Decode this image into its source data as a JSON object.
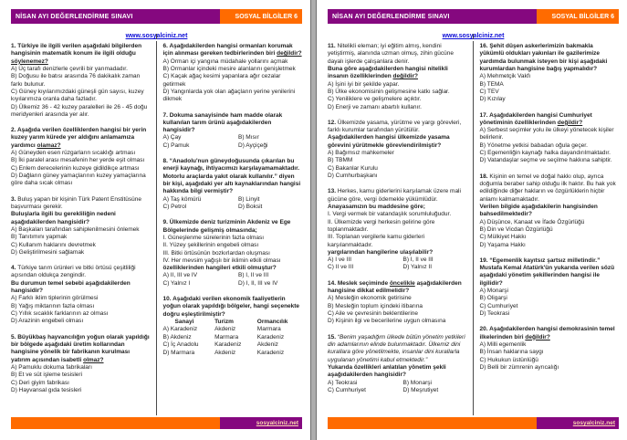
{
  "header": {
    "title": "NİSAN AYI DEĞERLENDİRME SINAVI",
    "subject": "SOSYAL BİLGİLER 6"
  },
  "top_link": "www.sosyalciniz.net",
  "footer": {
    "site": "sosyalciniz.net"
  },
  "colors": {
    "header_purple": "#85087f",
    "accent_orange": "#ff6b00",
    "link_blue": "#0b0bd6",
    "gutter_gray": "#adadad"
  },
  "pages": [
    {
      "columns": [
        [
          {
            "stem": [
              [
                {
                  "t": "1. Türkiye ile ilgili verilen aşağıdaki bilgilerden hangisinin matematik konum ile ilgili olduğu ",
                  "f": "b"
                },
                {
                  "t": "söylenemez?",
                  "f": "bu"
                }
              ]
            ],
            "options": {
              "layout": "list",
              "items": [
                "A) Üç tarafı denizlerle çevrili bir yarımadadır.",
                "B) Doğusu ile batısı arasında 76 dakikalık zaman farkı bulunur.",
                "C) Güney kıyılarımızdaki güneşli gün sayısı, kuzey kıyılarımıza oranla daha fazladır.",
                "D) Ülkemiz 36 - 42 kuzey paralelleri ile 26 - 45 doğu meridyenleri arasında yer alır."
              ]
            }
          },
          {
            "stem": [
              [
                {
                  "t": "2. Aşağıda verilen özelliklerden hangisi bir yerin kuzey yarım kürede yer aldığını anlamamıza yardımcı ",
                  "f": "b"
                },
                {
                  "t": "olamaz?",
                  "f": "bu"
                }
              ]
            ],
            "options": {
              "layout": "list",
              "items": [
                "A) Güneyden esen rüzgarların sıcaklığı artması",
                "B) İki paralel arası mesafenin her yerde eşit olması",
                "C) Enlem derecelerinin kuzeye gidildikçe artması",
                "D) Dağların güney yamaçlarının kuzey yamaçlarına göre daha sıcak olması"
              ]
            }
          },
          {
            "stem": [
              [
                {
                  "t": "3. ",
                  "f": "b"
                },
                {
                  "t": "Buluş yapan bir kişinin Türk Patent Enstitüsüne başvurması gerekir.",
                  "f": "r"
                }
              ],
              [
                {
                  "t": "Buluşlarla ilgili bu gerekliliğin nedeni aşağıdakilerden hangisidir?",
                  "f": "b"
                }
              ]
            ],
            "options": {
              "layout": "list",
              "items": [
                "A) Başkaları tarafından sahiplenilmesini önlemek",
                "B) Tanıtımını yapmak",
                "C) Kullanım haklarını devretmek",
                "D) Geliştirilmesini sağlamak"
              ]
            }
          },
          {
            "stem": [
              [
                {
                  "t": "4. ",
                  "f": "b"
                },
                {
                  "t": "Türkiye tarım ürünleri ve bitki örtüsü çeşitliliği açısından oldukça zengindir.",
                  "f": "r"
                }
              ],
              [
                {
                  "t": "Bu durumun temel sebebi aşağıdakilerden hangisidir?",
                  "f": "b"
                }
              ]
            ],
            "options": {
              "layout": "list",
              "items": [
                "A) Farklı iklim tiplerinin görülmesi",
                "B) Yağış miktarının fazla olması",
                "C) Yıllık sıcaklık farklarının az olması",
                "D) Arazinin engebeli olması"
              ]
            }
          },
          {
            "stem": [
              [
                {
                  "t": "5. Büyükbaş hayvancılığın yoğun olarak yapıldığı bir bölgede aşağıdaki üretim kollarından hangisine yönelik bir fabrikanın kurulması yatırım açısından isabetli ",
                  "f": "b"
                },
                {
                  "t": "olmaz?",
                  "f": "bu"
                }
              ]
            ],
            "options": {
              "layout": "list",
              "items": [
                "A) Pamuklu dokuma fabrikaları",
                "B) Et ve süt işleme tesisleri",
                "C) Deri giyim fabrikası",
                "D) Hayvansal gıda tesisleri"
              ]
            }
          }
        ],
        [
          {
            "stem": [
              [
                {
                  "t": "6. Aşağıdakilerden hangisi ormanları korumak için alınması gereken tedbirlerinden biri ",
                  "f": "b"
                },
                {
                  "t": "değildir?",
                  "f": "bu"
                }
              ]
            ],
            "options": {
              "layout": "list",
              "items": [
                "A) Orman içi yangına müdahale yollarını açmak",
                "B) Ormanlar içindeki mesire alanlarını genişletmek",
                "C) Kaçak ağaç kesimi yapanlara ağır cezalar getirmek",
                "D) Yangınlarda yok olan ağaçların yerine yenilerini dikmek"
              ]
            }
          },
          {
            "stem": [
              [
                {
                  "t": "7. Dokuma sanayisinde ham madde olarak kullanılan tarım ürünü aşağıdakilerden hangisidir?",
                  "f": "b"
                }
              ]
            ],
            "options": {
              "layout": "grid",
              "items": [
                "A) Çay",
                "B) Mısır",
                "C) Pamuk",
                "D) Ayçiçeği"
              ]
            }
          },
          {
            "stem": [
              [
                {
                  "t": "8. “Anadolu'nun güneydoğusunda çıkarılan bu enerji kaynağı, ihtiyacımızı karşılayamamaktadır. Motorlu araçlarda yakıt olarak kullanılır.” diyen bir kişi, aşağıdaki yer altı kaynaklarından hangisi hakkında bilgi vermiştir?",
                  "f": "b"
                }
              ]
            ],
            "options": {
              "layout": "grid",
              "items": [
                "A) Taş kömürü",
                "B) Linyit",
                "C) Petrol",
                "D) Boksit"
              ]
            }
          },
          {
            "stem": [
              [
                {
                  "t": "9. Ülkemizde deniz turizminin Akdeniz ve Ege Bölgelerinde gelişmiş olmasında;",
                  "f": "b"
                }
              ],
              [
                {
                  "t": "I. Güneşlenme sürelerinin fazla olması",
                  "f": "r"
                }
              ],
              [
                {
                  "t": "II. Yüzey şekillerinin engebeli olması",
                  "f": "r"
                }
              ],
              [
                {
                  "t": "III. Bitki örtüsünün bozkırlardan oluşması",
                  "f": "r"
                }
              ],
              [
                {
                  "t": "IV. Her mevsim yağışlı bir iklimin etkili olması",
                  "f": "r"
                }
              ],
              [
                {
                  "t": "özelliklerinden hangileri etkili olmuştur?",
                  "f": "b"
                }
              ]
            ],
            "options": {
              "layout": "grid",
              "items": [
                "A) II, III ve IV",
                "B) I, II ve III",
                "C) Yalnız I",
                "D) I, II, III ve IV"
              ]
            }
          },
          {
            "stem": [
              [
                {
                  "t": "10. Aşağıdaki verilen ekonomik faaliyetlerin yoğun olarak yapıldığı bölgeler, hangi seçenekte doğru eşleştirilmiştir?",
                  "f": "b"
                }
              ]
            ],
            "table": {
              "headers": [
                "Sanayi",
                "Turizm",
                "Ormancılık"
              ],
              "rows": [
                [
                  "A) Karadeniz",
                  "Akdeniz",
                  "Marmara"
                ],
                [
                  "B) Akdeniz",
                  "Marmara",
                  "Karadeniz"
                ],
                [
                  "C) İç Anadolu",
                  "Karadeniz",
                  "Akdeniz"
                ],
                [
                  "D) Marmara",
                  "Akdeniz",
                  "Karadeniz"
                ]
              ]
            }
          }
        ]
      ]
    },
    {
      "columns": [
        [
          {
            "stem": [
              [
                {
                  "t": "11. ",
                  "f": "b"
                },
                {
                  "t": "Nitelikli eleman; iyi eğitim almış, kendini yetiştirmiş, alanında uzman olmuş, zihin gücüne dayalı işlerde çalışanlara denir.",
                  "f": "r"
                }
              ],
              [
                {
                  "t": "Buna göre aşağıdakilerden hangisi nitelikli insanın özelliklerinden ",
                  "f": "b"
                },
                {
                  "t": "değildir?",
                  "f": "bu"
                }
              ]
            ],
            "options": {
              "layout": "list",
              "items": [
                "A) İşini iyi bir şekilde yapar.",
                "B) Ülke ekonomisinin gelişmesine katkı sağlar.",
                "C) Yeniliklere ve gelişmelere açıktır.",
                "D) Enerji ve zamanı abartılı kullanır."
              ]
            }
          },
          {
            "stem": [
              [
                {
                  "t": "12. ",
                  "f": "b"
                },
                {
                  "t": "Ülkemizde yasama, yürütme ve yargı görevleri, farklı kurumlar tarafından yürütülür.",
                  "f": "r"
                }
              ],
              [
                {
                  "t": "Aşağıdakilerden hangisi ülkemizde yasama görevini yürütmekle görevlendirilmiştir?",
                  "f": "b"
                }
              ]
            ],
            "options": {
              "layout": "list",
              "items": [
                "A) Bağımsız mahkemeler",
                "B) TBMM",
                "C) Bakanlar Kurulu",
                "D) Cumhurbaşkanı"
              ]
            }
          },
          {
            "stem": [
              [
                {
                  "t": "13. ",
                  "f": "b"
                },
                {
                  "t": "Herkes, kamu giderlerini karşılamak üzere mali gücüne göre, vergi ödemekle yükümlüdür.",
                  "f": "r"
                }
              ],
              [
                {
                  "t": "Anayasamızın bu maddesine göre;",
                  "f": "b"
                }
              ],
              [
                {
                  "t": "I. Vergi vermek bir vatandaşlık sorumluluğudur.",
                  "f": "r"
                }
              ],
              [
                {
                  "t": "II. Ülkemizde vergi herkesin gelirine göre toplanmaktadır.",
                  "f": "r"
                }
              ],
              [
                {
                  "t": "III. Toplanan vergilerle kamu giderleri karşılanmaktadır.",
                  "f": "r"
                }
              ],
              [
                {
                  "t": "yargılarından hangilerine ulaşılabilir?",
                  "f": "b"
                }
              ]
            ],
            "options": {
              "layout": "grid",
              "items": [
                "A) I ve III",
                "B) I, II ve III",
                "C) II ve III",
                "D) Yalnız II"
              ]
            }
          },
          {
            "stem": [
              [
                {
                  "t": "14. Meslek seçiminde ",
                  "f": "b"
                },
                {
                  "t": "öncelikle",
                  "f": "bu"
                },
                {
                  "t": " aşağıdakilerden hangisine dikkat edilmelidir?",
                  "f": "b"
                }
              ]
            ],
            "options": {
              "layout": "list",
              "items": [
                "A) Mesleğin ekonomik getirisine",
                "B) Mesleğin toplum içindeki itibarına",
                "C) Aile ve çevresinin beklentilerine",
                "D) Kişinin ilgi ve becerilerine uygun olmasına"
              ]
            }
          },
          {
            "stem": [
              [
                {
                  "t": "15. ",
                  "f": "b"
                },
                {
                  "t": "“Benim yaşadığım ülkede bütün yönetim yetkileri din adamlarının elinde bulunmaktadır. Ülkemiz dini kurallara göre yönetilmekte, insanlar dini kurallarla uygulanan yönetimi kabul etmektedir.”",
                  "f": "i"
                }
              ],
              [
                {
                  "t": "Yukarıda özellikleri anlatılan yönetim şekli aşağıdakilerden hangisidir?",
                  "f": "b"
                }
              ]
            ],
            "options": {
              "layout": "grid",
              "items": [
                "A) Teokrasi",
                "B) Monarşi",
                "C) Cumhuriyet",
                "D) Meşrutiyet"
              ]
            }
          }
        ],
        [
          {
            "stem": [
              [
                {
                  "t": "16. Şehit düşen askerlerimizin bakmakla yükümlü oldukları yakınları ile gazilerimize yardımda bulunmak isteyen bir kişi aşağıdaki kurumlardan hangisine bağış yapmalıdır?",
                  "f": "b"
                }
              ]
            ],
            "options": {
              "layout": "list",
              "items": [
                "A) Mehmetçik Vakfı",
                "B) TEMA",
                "C) TEV",
                "D) Kızılay"
              ]
            }
          },
          {
            "stem": [
              [
                {
                  "t": "17. Aşağıdakilerden hangisi Cumhuriyet yönetiminin özelliklerinden ",
                  "f": "b"
                },
                {
                  "t": "değildir?",
                  "f": "bu"
                }
              ]
            ],
            "options": {
              "layout": "list",
              "items": [
                "A) Serbest seçimler yolu ile ülkeyi yönetecek kişiler belirlenir.",
                "B) Yönetme yetkisi babadan oğula geçer.",
                "C) Egemenliğin kaynağı halka dayandırılmaktadır.",
                "D) Vatandaşlar seçme ve seçilme hakkına sahiptir."
              ]
            }
          },
          {
            "stem": [
              [
                {
                  "t": "18. ",
                  "f": "b"
                },
                {
                  "t": "Kişinin en temel ve doğal hakkı olup, ayrıca doğumla beraber sahip olduğu ilk haktır. Bu hak yok edildiğinde diğer hakların ve özgürlüklerin hiçbir anlamı kalmamaktadır.",
                  "f": "r"
                }
              ],
              [
                {
                  "t": "Verilen bilgide aşağıdakilerin hangisinden bahsedilmektedir?",
                  "f": "b"
                }
              ]
            ],
            "options": {
              "layout": "list",
              "items": [
                "A) Düşünce, Kanaat ve İfade Özgürlüğü",
                "B) Din ve Vicdan Özgürlüğü",
                "C) Mülkiyet Hakkı",
                "D) Yaşama Hakkı"
              ]
            }
          },
          {
            "stem": [
              [
                {
                  "t": "19. “Egemenlik kayıtsız şartsız milletindir.”",
                  "f": "b"
                }
              ],
              [
                {
                  "t": "Mustafa Kemal Atatürk'ün yukarıda verilen sözü aşağıdaki yönetim şekillerinden hangisi ile ilgilidir?",
                  "f": "b"
                }
              ]
            ],
            "options": {
              "layout": "list",
              "items": [
                "A) Monarşi",
                "B) Oligarşi",
                "C) Cumhuriyet",
                "D) Teokrasi"
              ]
            }
          },
          {
            "stem": [
              [
                {
                  "t": "20. Aşağıdakilerden hangisi demokrasinin temel ilkelerinden biri ",
                  "f": "b"
                },
                {
                  "t": "değildir?",
                  "f": "bu"
                }
              ]
            ],
            "options": {
              "layout": "list",
              "items": [
                "A) Milli egemenlik",
                "B) İnsan haklarına saygı",
                "C) Hukukun üstünlüğü",
                "D) Belli bir zümrenin ayrıcalığı"
              ]
            }
          }
        ]
      ]
    }
  ]
}
